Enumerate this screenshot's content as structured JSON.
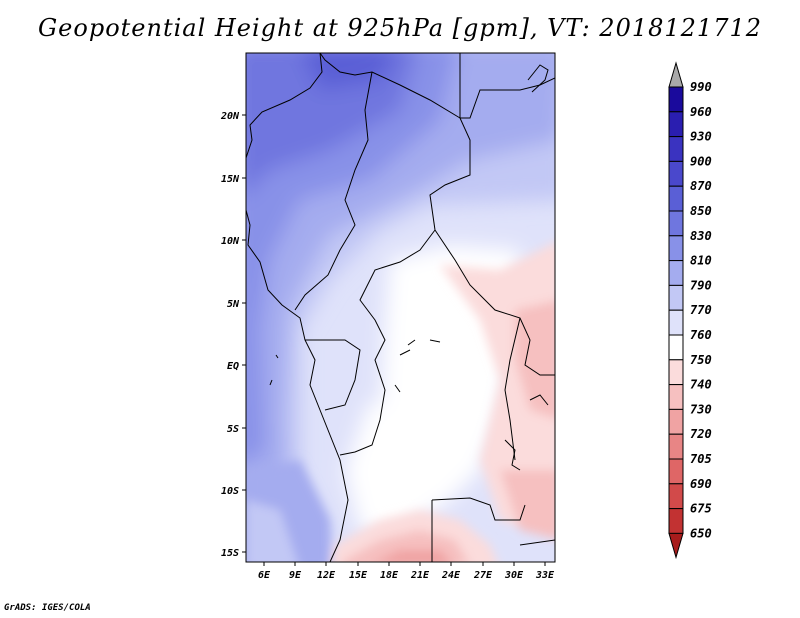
{
  "title": "Geopotential Height at 925hPa [gpm], VT: 2018121712",
  "footer": "GrADS: IGES/COLA",
  "map": {
    "lon_ticks": [
      "6E",
      "9E",
      "12E",
      "15E",
      "18E",
      "21E",
      "24E",
      "27E",
      "30E",
      "33E"
    ],
    "lat_ticks": [
      "20N",
      "15N",
      "10N",
      "5N",
      "EQ",
      "5S",
      "10S",
      "15S"
    ]
  },
  "colorbar": {
    "levels": [
      "990",
      "960",
      "930",
      "900",
      "870",
      "850",
      "830",
      "810",
      "790",
      "770",
      "760",
      "750",
      "740",
      "730",
      "720",
      "705",
      "690",
      "675",
      "650"
    ],
    "colors": [
      "#1a0a9c",
      "#2a1eb0",
      "#3a33c0",
      "#4a48cc",
      "#5a5fd6",
      "#6f76df",
      "#8891e8",
      "#a4acef",
      "#c2c8f5",
      "#dfe2fa",
      "#ffffff",
      "#fbdcdc",
      "#f6c0c0",
      "#f0a3a3",
      "#e88585",
      "#df6666",
      "#d24a4a",
      "#c23232",
      "#a81c1c"
    ],
    "top_arrow_color": "#a9a9a9"
  }
}
